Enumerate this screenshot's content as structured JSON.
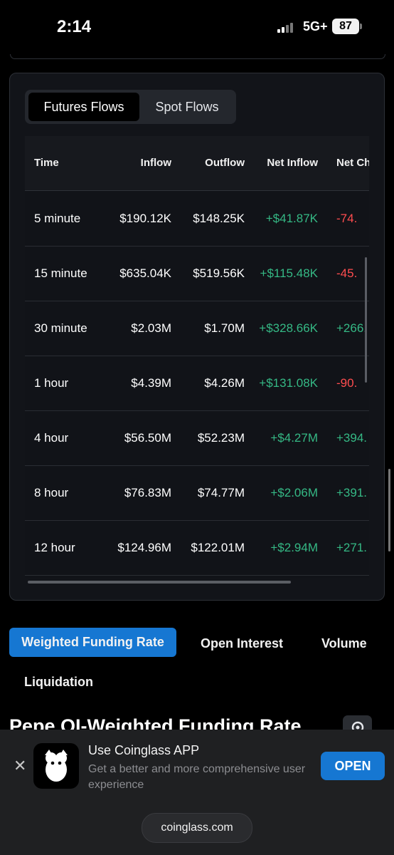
{
  "status_bar": {
    "time": "2:14",
    "network": "5G+",
    "battery": "87"
  },
  "flows": {
    "tabs": [
      "Futures Flows",
      "Spot Flows"
    ],
    "headers": {
      "time": "Time",
      "inflow": "Inflow",
      "outflow": "Outflow",
      "net_inflow": "Net Inflow",
      "net_change": "Net Ch"
    },
    "rows": [
      {
        "time": "5 minute",
        "inflow": "$190.12K",
        "outflow": "$148.25K",
        "net_inflow": "+$41.87K",
        "net_change": "-74."
      },
      {
        "time": "15 minute",
        "inflow": "$635.04K",
        "outflow": "$519.56K",
        "net_inflow": "+$115.48K",
        "net_change": "-45."
      },
      {
        "time": "30 minute",
        "inflow": "$2.03M",
        "outflow": "$1.70M",
        "net_inflow": "+$328.66K",
        "net_change": "+266."
      },
      {
        "time": "1 hour",
        "inflow": "$4.39M",
        "outflow": "$4.26M",
        "net_inflow": "+$131.08K",
        "net_change": "-90."
      },
      {
        "time": "4 hour",
        "inflow": "$56.50M",
        "outflow": "$52.23M",
        "net_inflow": "+$4.27M",
        "net_change": "+394."
      },
      {
        "time": "8 hour",
        "inflow": "$76.83M",
        "outflow": "$74.77M",
        "net_inflow": "+$2.06M",
        "net_change": "+391."
      },
      {
        "time": "12 hour",
        "inflow": "$124.96M",
        "outflow": "$122.01M",
        "net_inflow": "+$2.94M",
        "net_change": "+271."
      }
    ]
  },
  "metric_tabs": [
    "Weighted Funding Rate",
    "Open Interest",
    "Volume",
    "Liquidation"
  ],
  "section_title": "Pepe OI-Weighted Funding Rate",
  "banner": {
    "title": "Use Coinglass APP",
    "subtitle": "Get a better and more comprehensive user experience",
    "open": "OPEN",
    "url": "coinglass.com"
  },
  "colors": {
    "accent": "#1677d2",
    "positive": "#35b985",
    "negative": "#ff4d4f"
  },
  "icons": [
    "close-icon",
    "gear-icon",
    "app-logo-icon"
  ]
}
